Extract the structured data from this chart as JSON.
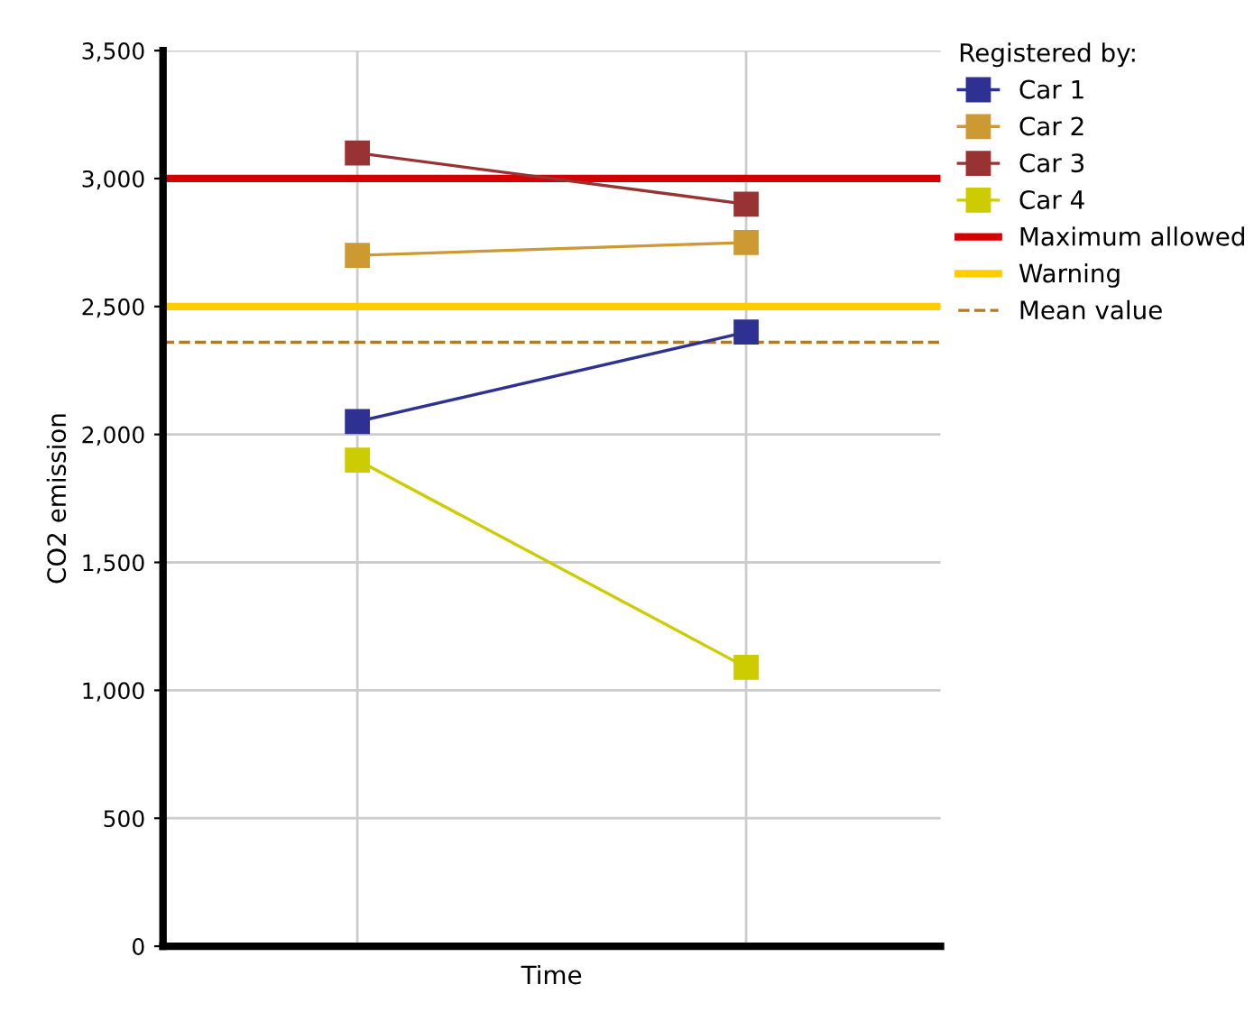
{
  "chart_data": {
    "type": "line",
    "xlabel": "Time",
    "ylabel": "CO2 emission",
    "legend_title": "Registered by:",
    "categories": [
      null,
      null
    ],
    "series": [
      {
        "name": "Car 1",
        "color": "#2e3192",
        "values": [
          2050,
          2400
        ]
      },
      {
        "name": "Car 2",
        "color": "#cc9933",
        "values": [
          2700,
          2750
        ]
      },
      {
        "name": "Car 3",
        "color": "#993333",
        "values": [
          3100,
          2900
        ]
      },
      {
        "name": "Car 4",
        "color": "#cccc00",
        "values": [
          1900,
          1090
        ]
      }
    ],
    "ref_lines": [
      {
        "axis": "y",
        "value": 3000,
        "label": "Maximum allowed",
        "color": "#d40000",
        "line_style": "solid"
      },
      {
        "axis": "y",
        "value": 2500,
        "label": "Warning",
        "color": "#ffcc00",
        "line_style": "solid"
      },
      {
        "axis": "y",
        "value": 2360,
        "label": "Mean value",
        "color": "#b07a2a",
        "line_style": "dashed"
      }
    ],
    "ylim": [
      0,
      3500
    ],
    "yticks": [
      {
        "value": 0,
        "label": "0"
      },
      {
        "value": 500,
        "label": "500"
      },
      {
        "value": 1000,
        "label": "1,000"
      },
      {
        "value": 1500,
        "label": "1,500"
      },
      {
        "value": 2000,
        "label": "2,000"
      },
      {
        "value": 2500,
        "label": "2,500"
      },
      {
        "value": 3000,
        "label": "3,000"
      },
      {
        "value": 3500,
        "label": "3,500"
      }
    ],
    "grid": true,
    "legend": "right",
    "marker": "square",
    "line_style": "solid"
  }
}
